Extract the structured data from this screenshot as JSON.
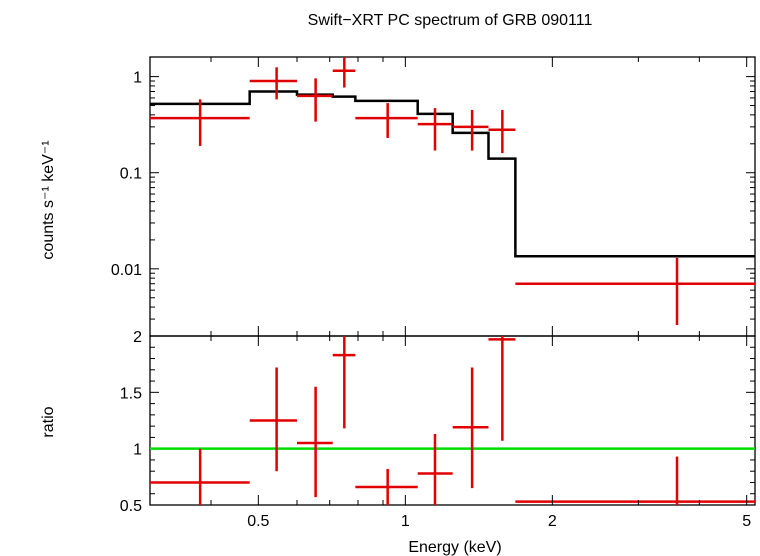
{
  "chart_data": {
    "type": "scatter",
    "title": "Swift−XRT PC spectrum of GRB 090111",
    "xlabel": "Energy (keV)",
    "xscale": "log",
    "xlim": [
      0.3,
      5.2
    ],
    "x_tick_labels": [
      "0.5",
      "1",
      "2",
      "5"
    ],
    "x_tick_values": [
      0.5,
      1,
      2,
      5
    ],
    "colors": {
      "data": "#e00000",
      "model": "#000000",
      "ratio_line": "#00dd00"
    },
    "spectrum": {
      "ylabel": "counts s⁻¹ keV⁻¹",
      "yscale": "log",
      "ylim": [
        0.002,
        1.6
      ],
      "y_tick_labels": [
        "1",
        "0.1",
        "0.01"
      ],
      "y_tick_values": [
        1,
        0.1,
        0.01
      ],
      "data_points": [
        {
          "x": 0.38,
          "xlo": 0.3,
          "xhi": 0.48,
          "y": 0.37,
          "ylo": 0.19,
          "yhi": 0.58
        },
        {
          "x": 0.545,
          "xlo": 0.48,
          "xhi": 0.6,
          "y": 0.9,
          "ylo": 0.58,
          "yhi": 1.25
        },
        {
          "x": 0.655,
          "xlo": 0.6,
          "xhi": 0.71,
          "y": 0.63,
          "ylo": 0.34,
          "yhi": 0.96
        },
        {
          "x": 0.75,
          "xlo": 0.71,
          "xhi": 0.79,
          "y": 1.15,
          "ylo": 0.77,
          "yhi": 1.6
        },
        {
          "x": 0.92,
          "xlo": 0.79,
          "xhi": 1.06,
          "y": 0.37,
          "ylo": 0.23,
          "yhi": 0.53
        },
        {
          "x": 1.15,
          "xlo": 1.06,
          "xhi": 1.25,
          "y": 0.32,
          "ylo": 0.17,
          "yhi": 0.47
        },
        {
          "x": 1.37,
          "xlo": 1.25,
          "xhi": 1.48,
          "y": 0.3,
          "ylo": 0.17,
          "yhi": 0.45
        },
        {
          "x": 1.58,
          "xlo": 1.48,
          "xhi": 1.68,
          "y": 0.28,
          "ylo": 0.16,
          "yhi": 0.45
        },
        {
          "x": 3.6,
          "xlo": 1.68,
          "xhi": 5.2,
          "y": 0.007,
          "ylo": 0.0026,
          "yhi": 0.013
        }
      ],
      "model_steps": [
        {
          "xlo": 0.3,
          "xhi": 0.48,
          "y": 0.52
        },
        {
          "xlo": 0.48,
          "xhi": 0.6,
          "y": 0.7
        },
        {
          "xlo": 0.6,
          "xhi": 0.71,
          "y": 0.65
        },
        {
          "xlo": 0.71,
          "xhi": 0.79,
          "y": 0.62
        },
        {
          "xlo": 0.79,
          "xhi": 1.06,
          "y": 0.56
        },
        {
          "xlo": 1.06,
          "xhi": 1.25,
          "y": 0.41
        },
        {
          "xlo": 1.25,
          "xhi": 1.48,
          "y": 0.26
        },
        {
          "xlo": 1.48,
          "xhi": 1.68,
          "y": 0.14
        },
        {
          "xlo": 1.68,
          "xhi": 5.2,
          "y": 0.0135
        }
      ]
    },
    "ratio": {
      "ylabel": "ratio",
      "yscale": "linear",
      "ylim": [
        0.5,
        2
      ],
      "y_tick_labels": [
        "0.5",
        "1",
        "1.5",
        "2"
      ],
      "y_tick_values": [
        0.5,
        1,
        1.5,
        2
      ],
      "reference_value": 1,
      "data_points": [
        {
          "x": 0.38,
          "xlo": 0.3,
          "xhi": 0.48,
          "y": 0.7,
          "ylo": 0.5,
          "yhi": 1.0
        },
        {
          "x": 0.545,
          "xlo": 0.48,
          "xhi": 0.6,
          "y": 1.25,
          "ylo": 0.8,
          "yhi": 1.72
        },
        {
          "x": 0.655,
          "xlo": 0.6,
          "xhi": 0.71,
          "y": 1.05,
          "ylo": 0.57,
          "yhi": 1.55
        },
        {
          "x": 0.75,
          "xlo": 0.71,
          "xhi": 0.79,
          "y": 1.83,
          "ylo": 1.18,
          "yhi": 2.0
        },
        {
          "x": 0.92,
          "xlo": 0.79,
          "xhi": 1.06,
          "y": 0.66,
          "ylo": 0.5,
          "yhi": 0.82
        },
        {
          "x": 1.15,
          "xlo": 1.06,
          "xhi": 1.25,
          "y": 0.78,
          "ylo": 0.5,
          "yhi": 1.13
        },
        {
          "x": 1.37,
          "xlo": 1.25,
          "xhi": 1.48,
          "y": 1.19,
          "ylo": 0.65,
          "yhi": 1.72
        },
        {
          "x": 1.58,
          "xlo": 1.48,
          "xhi": 1.68,
          "y": 1.97,
          "ylo": 1.07,
          "yhi": 2.0
        },
        {
          "x": 3.6,
          "xlo": 1.68,
          "xhi": 5.2,
          "y": 0.53,
          "ylo": 0.5,
          "yhi": 0.93
        }
      ]
    }
  }
}
